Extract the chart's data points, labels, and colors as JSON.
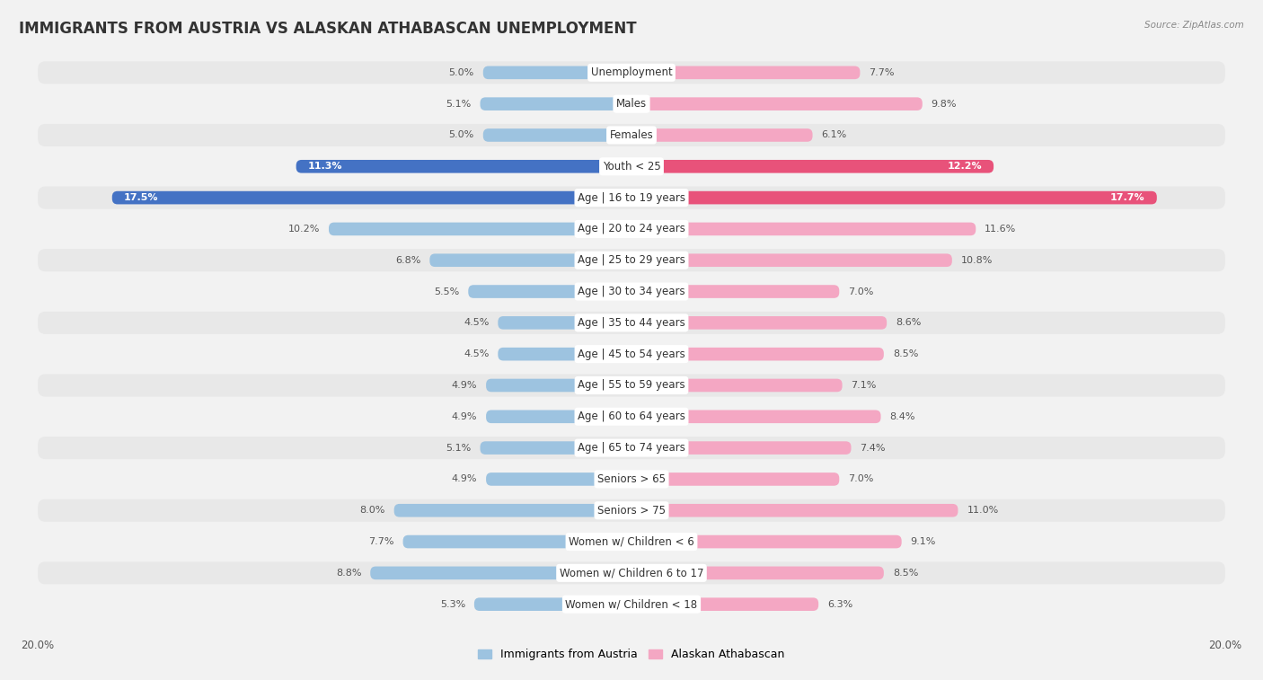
{
  "title": "IMMIGRANTS FROM AUSTRIA VS ALASKAN ATHABASCAN UNEMPLOYMENT",
  "source": "Source: ZipAtlas.com",
  "categories": [
    "Unemployment",
    "Males",
    "Females",
    "Youth < 25",
    "Age | 16 to 19 years",
    "Age | 20 to 24 years",
    "Age | 25 to 29 years",
    "Age | 30 to 34 years",
    "Age | 35 to 44 years",
    "Age | 45 to 54 years",
    "Age | 55 to 59 years",
    "Age | 60 to 64 years",
    "Age | 65 to 74 years",
    "Seniors > 65",
    "Seniors > 75",
    "Women w/ Children < 6",
    "Women w/ Children 6 to 17",
    "Women w/ Children < 18"
  ],
  "austria_values": [
    5.0,
    5.1,
    5.0,
    11.3,
    17.5,
    10.2,
    6.8,
    5.5,
    4.5,
    4.5,
    4.9,
    4.9,
    5.1,
    4.9,
    8.0,
    7.7,
    8.8,
    5.3
  ],
  "athabascan_values": [
    7.7,
    9.8,
    6.1,
    12.2,
    17.7,
    11.6,
    10.8,
    7.0,
    8.6,
    8.5,
    7.1,
    8.4,
    7.4,
    7.0,
    11.0,
    9.1,
    8.5,
    6.3
  ],
  "austria_color": "#9dc3e0",
  "athabascan_color": "#f4a7c3",
  "austria_highlight_color": "#4472c4",
  "athabascan_highlight_color": "#e8527a",
  "austria_label": "Immigrants from Austria",
  "athabascan_label": "Alaskan Athabascan",
  "axis_limit": 20.0,
  "bg_color": "#f2f2f2",
  "row_even_color": "#e8e8e8",
  "row_odd_color": "#f2f2f2",
  "title_fontsize": 12,
  "label_fontsize": 8.5,
  "value_fontsize": 8,
  "highlight_rows": [
    3,
    4
  ]
}
